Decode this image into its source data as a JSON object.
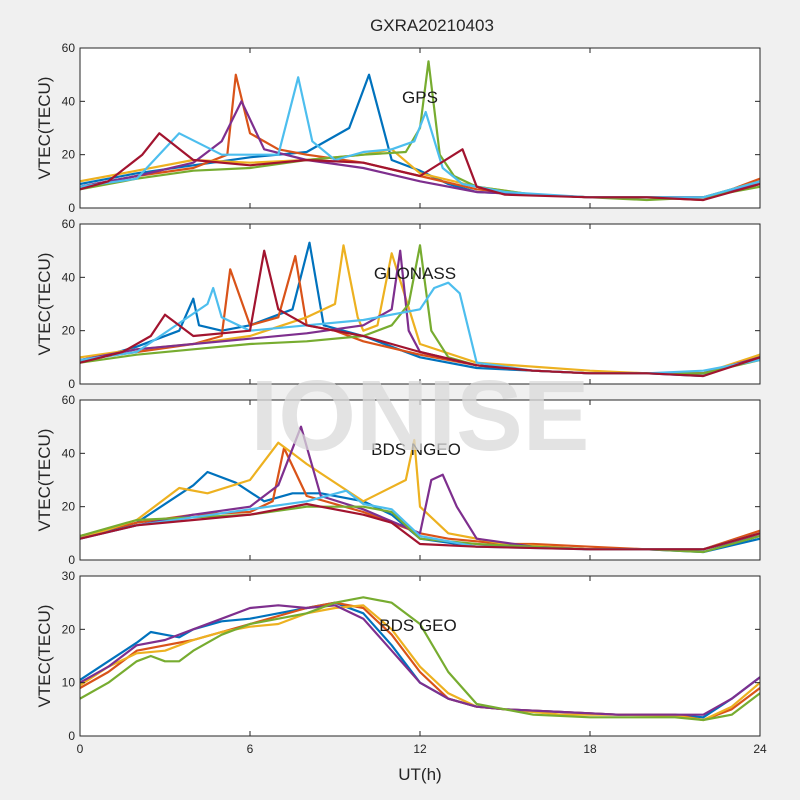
{
  "figure": {
    "title": "GXRA20210403",
    "watermark": "IONISE",
    "xlabel": "UT(h)",
    "background": "#f0f0f0"
  },
  "colors": {
    "series": [
      "#0072BD",
      "#D95319",
      "#EDB120",
      "#7E2F8E",
      "#77AC30",
      "#4DBEEE",
      "#A2142F"
    ],
    "watermark": "#d9d9d9"
  },
  "chart_data": [
    {
      "type": "line",
      "name": "GPS",
      "ylabel": "VTEC(TECU)",
      "xlim": [
        0,
        24
      ],
      "ylim": [
        0,
        60
      ],
      "xticks": [
        0,
        6,
        12,
        18,
        24
      ],
      "yticks": [
        0,
        20,
        40,
        60
      ],
      "series": [
        {
          "color_index": 0,
          "x": [
            0,
            2,
            4,
            6,
            8,
            9.5,
            10.2,
            11,
            12,
            13,
            14,
            16,
            18,
            20,
            22,
            24
          ],
          "y": [
            9,
            13,
            16,
            19,
            21,
            30,
            50,
            18,
            14,
            9,
            6,
            5,
            4,
            4,
            4,
            10
          ]
        },
        {
          "color_index": 1,
          "x": [
            0,
            2,
            4,
            5.2,
            5.5,
            6,
            7,
            8,
            10,
            12,
            14,
            16,
            18,
            20,
            22,
            24
          ],
          "y": [
            8,
            12,
            15,
            20,
            50,
            28,
            22,
            20,
            17,
            12,
            7,
            5,
            4,
            4,
            3,
            11
          ]
        },
        {
          "color_index": 2,
          "x": [
            0,
            2,
            4,
            6,
            8,
            10,
            11,
            12,
            14,
            16,
            18,
            20,
            22,
            24
          ],
          "y": [
            10,
            14,
            18,
            17,
            18,
            20,
            22,
            13,
            8,
            5,
            4,
            4,
            4,
            10
          ]
        },
        {
          "color_index": 3,
          "x": [
            0,
            2,
            4,
            5,
            5.7,
            6.5,
            8,
            10,
            12,
            14,
            16,
            18,
            20,
            22,
            24
          ],
          "y": [
            8,
            12,
            17,
            25,
            40,
            22,
            18,
            15,
            10,
            6,
            5,
            4,
            4,
            4,
            9
          ]
        },
        {
          "color_index": 4,
          "x": [
            0,
            2,
            4,
            6,
            8,
            10,
            11.5,
            12,
            12.3,
            12.7,
            13.2,
            14,
            16,
            18,
            20,
            22,
            24
          ],
          "y": [
            7,
            11,
            14,
            15,
            18,
            20,
            21,
            30,
            55,
            20,
            12,
            8,
            5,
            4,
            3,
            4,
            8
          ]
        },
        {
          "color_index": 5,
          "x": [
            0,
            2,
            3.5,
            5,
            7,
            7.7,
            8.2,
            9,
            10,
            11,
            11.8,
            12.2,
            12.8,
            13.5,
            15,
            18,
            20,
            22,
            24
          ],
          "y": [
            8,
            11,
            28,
            20,
            20,
            49,
            25,
            18,
            21,
            22,
            25,
            36,
            15,
            9,
            6,
            4,
            4,
            4,
            10
          ]
        },
        {
          "color_index": 6,
          "x": [
            0,
            1,
            2.2,
            2.8,
            4,
            6,
            8,
            10,
            12,
            13.5,
            14,
            15,
            18,
            20,
            22,
            24
          ],
          "y": [
            7,
            10,
            20,
            28,
            18,
            16,
            18,
            17,
            12,
            22,
            8,
            5,
            4,
            4,
            3,
            9
          ]
        }
      ]
    },
    {
      "type": "line",
      "name": "GLONASS",
      "ylabel": "VTEC(TECU)",
      "xlim": [
        0,
        24
      ],
      "ylim": [
        0,
        60
      ],
      "xticks": [
        0,
        6,
        12,
        18,
        24
      ],
      "yticks": [
        0,
        20,
        40,
        60
      ],
      "series": [
        {
          "color_index": 0,
          "x": [
            0,
            2,
            3.5,
            4,
            4.2,
            5,
            6,
            7.5,
            8.1,
            8.6,
            10,
            12,
            14,
            16,
            18,
            20,
            22,
            24
          ],
          "y": [
            8,
            14,
            20,
            32,
            22,
            20,
            22,
            28,
            53,
            22,
            18,
            10,
            6,
            5,
            4,
            4,
            3,
            11
          ]
        },
        {
          "color_index": 1,
          "x": [
            0,
            2,
            4,
            5,
            5.3,
            6,
            7,
            7.6,
            8,
            9,
            10,
            12,
            14,
            16,
            18,
            20,
            22,
            24
          ],
          "y": [
            9,
            12,
            15,
            18,
            43,
            22,
            25,
            48,
            22,
            20,
            16,
            11,
            7,
            5,
            4,
            4,
            4,
            10
          ]
        },
        {
          "color_index": 2,
          "x": [
            0,
            2,
            4,
            6,
            8,
            9,
            9.3,
            9.8,
            10,
            10.5,
            11,
            12,
            14,
            18,
            20,
            22,
            24
          ],
          "y": [
            10,
            13,
            15,
            18,
            25,
            30,
            52,
            25,
            20,
            22,
            49,
            15,
            8,
            5,
            4,
            4,
            11
          ]
        },
        {
          "color_index": 3,
          "x": [
            0,
            2,
            4,
            6,
            8,
            10,
            11,
            11.3,
            11.6,
            12,
            14,
            16,
            18,
            20,
            22,
            24
          ],
          "y": [
            9,
            13,
            15,
            17,
            19,
            22,
            28,
            50,
            20,
            12,
            7,
            5,
            4,
            4,
            4,
            10
          ]
        },
        {
          "color_index": 4,
          "x": [
            0,
            2,
            4,
            6,
            8,
            10,
            11,
            11.6,
            12,
            12.4,
            13,
            14,
            16,
            18,
            20,
            22,
            24
          ],
          "y": [
            8,
            11,
            13,
            15,
            16,
            18,
            22,
            30,
            52,
            20,
            10,
            7,
            5,
            4,
            4,
            4,
            9
          ]
        },
        {
          "color_index": 5,
          "x": [
            0,
            2,
            4.5,
            4.7,
            5,
            6,
            8,
            10,
            12,
            12.5,
            13,
            13.4,
            14,
            16,
            18,
            20,
            22,
            24
          ],
          "y": [
            9,
            12,
            30,
            36,
            25,
            20,
            22,
            24,
            28,
            36,
            38,
            34,
            8,
            5,
            4,
            4,
            5,
            9
          ]
        },
        {
          "color_index": 6,
          "x": [
            0,
            1.5,
            2.5,
            3,
            4,
            6,
            6.5,
            7,
            8,
            10,
            12,
            14,
            16,
            18,
            20,
            22,
            24
          ],
          "y": [
            8,
            12,
            18,
            26,
            18,
            20,
            50,
            28,
            22,
            18,
            12,
            7,
            5,
            4,
            4,
            3,
            10
          ]
        }
      ]
    },
    {
      "type": "line",
      "name": "BDS NGEO",
      "ylabel": "VTEC(TECU)",
      "xlim": [
        0,
        24
      ],
      "ylim": [
        0,
        60
      ],
      "xticks": [
        0,
        6,
        12,
        18,
        24
      ],
      "yticks": [
        0,
        20,
        40,
        60
      ],
      "series": [
        {
          "color_index": 0,
          "x": [
            0,
            2,
            4,
            4.5,
            5.5,
            6.5,
            7.5,
            8.5,
            10,
            11,
            12,
            14,
            16,
            18,
            20,
            22,
            24
          ],
          "y": [
            8,
            14,
            28,
            33,
            29,
            22,
            25,
            25,
            22,
            17,
            8,
            5,
            5,
            4,
            4,
            3,
            8
          ]
        },
        {
          "color_index": 1,
          "x": [
            0,
            2,
            4,
            6,
            6.8,
            7.2,
            8,
            10,
            11,
            12,
            13,
            15,
            16,
            18,
            20,
            22,
            24
          ],
          "y": [
            9,
            14,
            17,
            18,
            22,
            42,
            24,
            18,
            14,
            10,
            8,
            6,
            6,
            5,
            4,
            4,
            11
          ]
        },
        {
          "color_index": 2,
          "x": [
            0,
            2,
            3.5,
            4.5,
            6,
            7,
            7.5,
            8,
            10,
            11.5,
            11.8,
            12,
            13,
            15,
            18,
            20,
            22,
            24
          ],
          "y": [
            8,
            15,
            27,
            25,
            30,
            44,
            40,
            36,
            22,
            30,
            45,
            20,
            10,
            6,
            4,
            4,
            4,
            10
          ]
        },
        {
          "color_index": 3,
          "x": [
            0,
            2,
            4,
            6,
            7,
            7.8,
            8.5,
            10,
            12,
            12.4,
            12.8,
            13.3,
            14,
            16,
            18,
            20,
            22,
            24
          ],
          "y": [
            8,
            13,
            17,
            20,
            28,
            50,
            24,
            19,
            10,
            30,
            32,
            20,
            8,
            5,
            4,
            4,
            4,
            9
          ]
        },
        {
          "color_index": 4,
          "x": [
            0,
            2,
            4,
            6,
            8,
            10,
            11,
            12,
            14,
            16,
            18,
            20,
            22,
            24
          ],
          "y": [
            9,
            15,
            16,
            17,
            20,
            20,
            18,
            8,
            6,
            5,
            4,
            4,
            3,
            9
          ]
        },
        {
          "color_index": 5,
          "x": [
            0,
            2,
            4,
            6,
            8,
            9.4,
            10,
            11,
            12,
            14,
            18,
            20,
            22,
            24
          ],
          "y": [
            8,
            13,
            16,
            19,
            22,
            26,
            21,
            19,
            9,
            5,
            4,
            4,
            4,
            10
          ]
        },
        {
          "color_index": 6,
          "x": [
            0,
            2,
            4,
            6,
            8,
            10,
            11,
            12,
            14,
            18,
            20,
            22,
            24
          ],
          "y": [
            8,
            13,
            15,
            17,
            21,
            17,
            14,
            6,
            5,
            4,
            4,
            4,
            10
          ]
        }
      ]
    },
    {
      "type": "line",
      "name": "BDS GEO",
      "ylabel": "VTEC(TECU)",
      "xlim": [
        0,
        24
      ],
      "ylim": [
        0,
        30
      ],
      "xticks": [
        0,
        6,
        12,
        18,
        24
      ],
      "yticks": [
        0,
        10,
        20,
        30
      ],
      "series": [
        {
          "color_index": 0,
          "x": [
            0,
            1,
            2,
            2.5,
            3,
            3.5,
            4,
            5,
            6,
            7,
            8,
            9,
            10,
            11,
            12,
            13,
            14,
            15,
            17,
            19,
            21,
            22,
            23,
            24
          ],
          "y": [
            10.5,
            14,
            17.5,
            19.5,
            19,
            18.5,
            20,
            21.5,
            22,
            23,
            24,
            25,
            23,
            17,
            10,
            7,
            5.5,
            5,
            4.5,
            4,
            4,
            3.5,
            7,
            11
          ]
        },
        {
          "color_index": 1,
          "x": [
            0,
            1,
            2,
            3,
            4,
            5,
            6,
            7,
            8,
            9,
            10,
            11,
            12,
            13,
            14,
            15,
            17,
            19,
            21,
            22,
            23,
            24
          ],
          "y": [
            9,
            12,
            16,
            17,
            18,
            19.5,
            21,
            22.5,
            24,
            25,
            24,
            19,
            12,
            7,
            5.5,
            5,
            4.5,
            4,
            4,
            3,
            5,
            9
          ]
        },
        {
          "color_index": 2,
          "x": [
            0,
            1,
            2,
            3,
            4,
            5,
            6,
            7,
            8,
            9,
            10,
            11,
            12,
            13,
            14,
            15,
            17,
            19,
            21,
            22,
            23,
            24
          ],
          "y": [
            9.5,
            13,
            15.5,
            16,
            18,
            19.5,
            20.5,
            21,
            23,
            24,
            24.5,
            20,
            13,
            8,
            5.5,
            5,
            4,
            4,
            3.8,
            3,
            5.5,
            10
          ]
        },
        {
          "color_index": 3,
          "x": [
            0,
            1,
            2,
            3,
            4,
            5,
            6,
            7,
            8,
            9,
            10,
            11,
            12,
            13,
            14,
            15,
            17,
            19,
            21,
            22,
            23,
            24
          ],
          "y": [
            10,
            13,
            17,
            18,
            20,
            22,
            24,
            24.5,
            24,
            24.5,
            22,
            16,
            10,
            7,
            5.5,
            5,
            4.5,
            4,
            4,
            4,
            7,
            11
          ]
        },
        {
          "color_index": 4,
          "x": [
            0,
            1,
            2,
            2.5,
            3,
            3.5,
            4,
            5,
            6,
            7,
            8,
            9,
            10,
            11,
            12,
            13,
            14,
            16,
            18,
            20,
            21,
            22,
            23,
            24
          ],
          "y": [
            7,
            10,
            14,
            15,
            14,
            14,
            16,
            19,
            21,
            22,
            23,
            25,
            26,
            25,
            21,
            12,
            6,
            4,
            3.5,
            3.5,
            3.5,
            3,
            4,
            8
          ]
        }
      ]
    }
  ],
  "panel_labels": [
    "GPS",
    "GLONASS",
    "BDS NGEO",
    "BDS GEO"
  ]
}
